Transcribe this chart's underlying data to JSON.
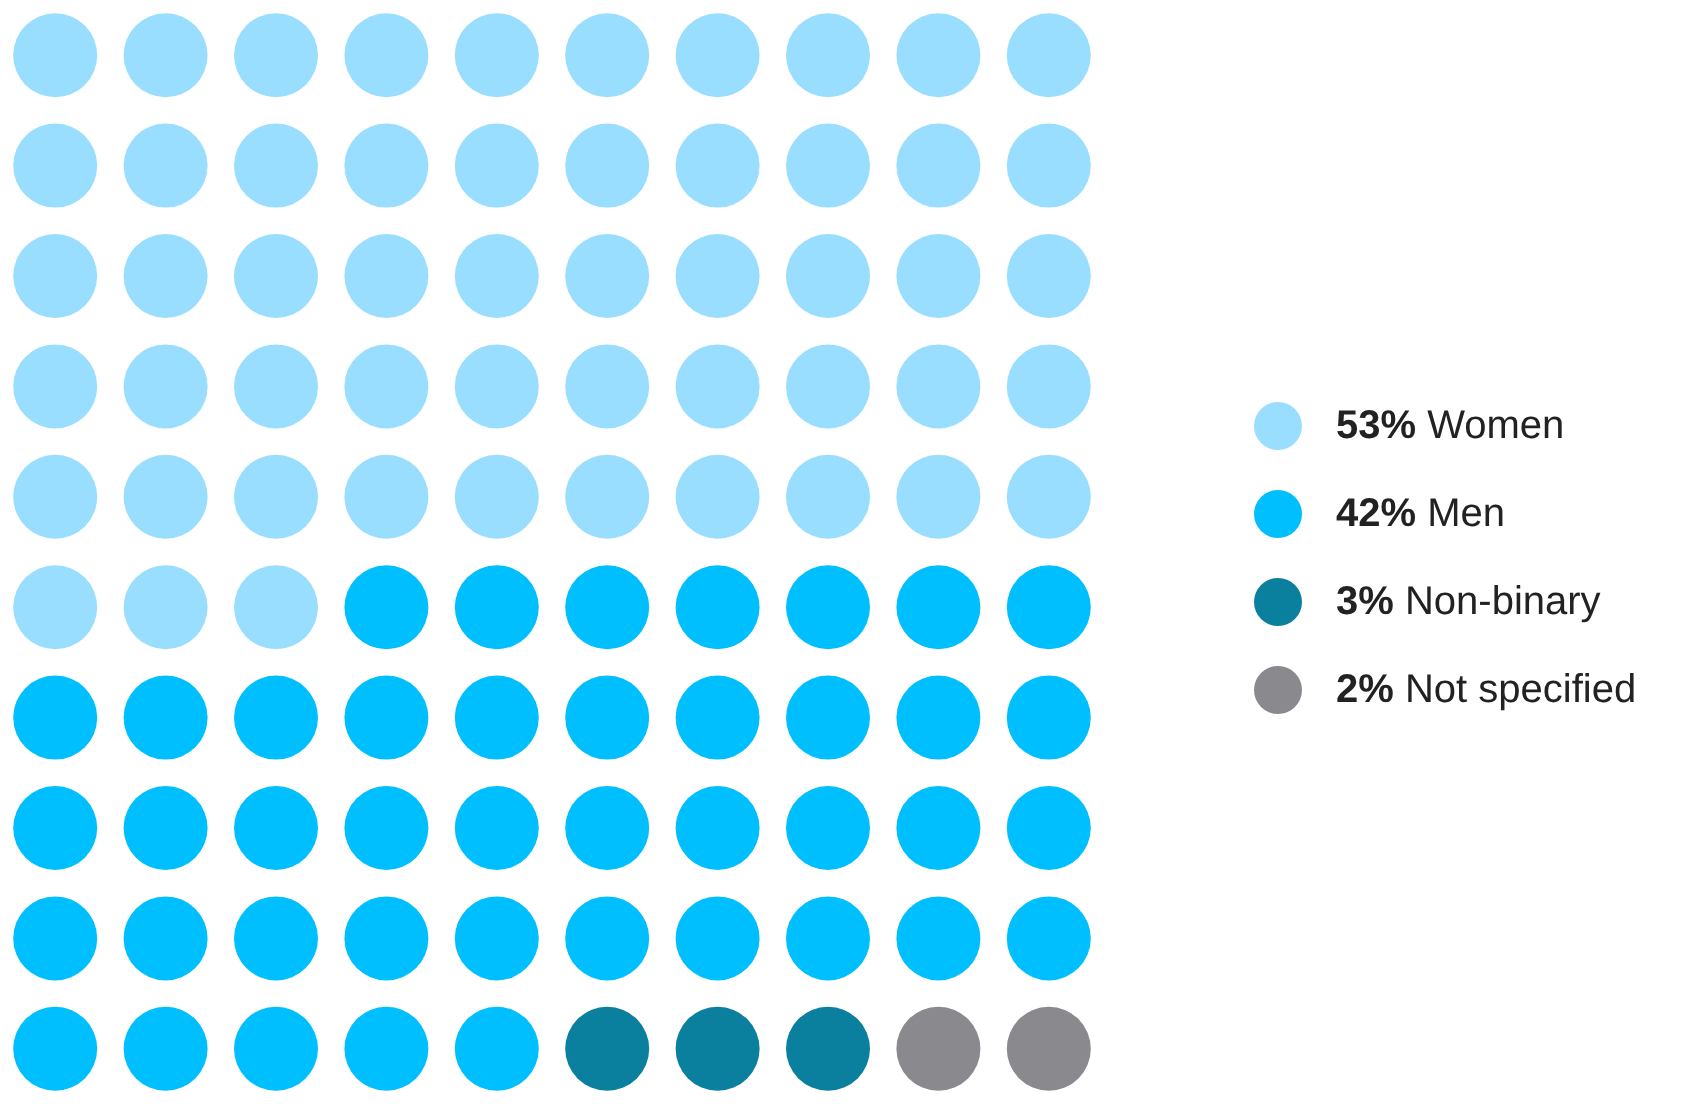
{
  "chart_data": {
    "type": "other",
    "categories": [
      "Women",
      "Men",
      "Non-binary",
      "Not specified"
    ],
    "values": [
      53,
      42,
      3,
      2
    ],
    "value_labels": [
      "53%",
      "42%",
      "3%",
      "2%"
    ],
    "colors": [
      "#99ddff",
      "#00bfff",
      "#0b7f9e",
      "#8a898e"
    ]
  }
}
